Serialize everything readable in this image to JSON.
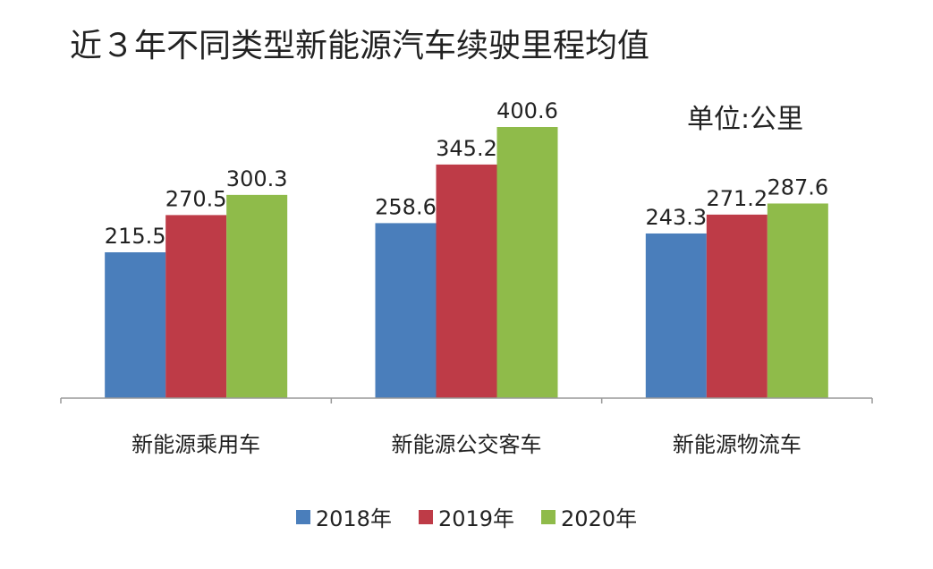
{
  "chart_data": {
    "type": "bar",
    "title": "近３年不同类型新能源汽车续驶里程均值",
    "unit": "单位:公里",
    "categories": [
      "新能源乘用车",
      "新能源公交客车",
      "新能源物流车"
    ],
    "series": [
      {
        "name": "2018年",
        "color": "#4a7ebb",
        "values": [
          215.5,
          258.6,
          243.3
        ],
        "labels": [
          "215.5",
          "258.6",
          "243.3"
        ]
      },
      {
        "name": "2019年",
        "color": "#be3b47",
        "values": [
          270.5,
          345.2,
          271.2
        ],
        "labels": [
          "270.5",
          "345.2",
          "271.2"
        ]
      },
      {
        "name": "2020年",
        "color": "#8fbb4a",
        "values": [
          300.3,
          400.6,
          287.6
        ],
        "labels": [
          "300.3",
          "400.6",
          "287.6"
        ]
      }
    ],
    "ylim": [
      0,
      450
    ],
    "grid": false,
    "legend_position": "bottom"
  }
}
